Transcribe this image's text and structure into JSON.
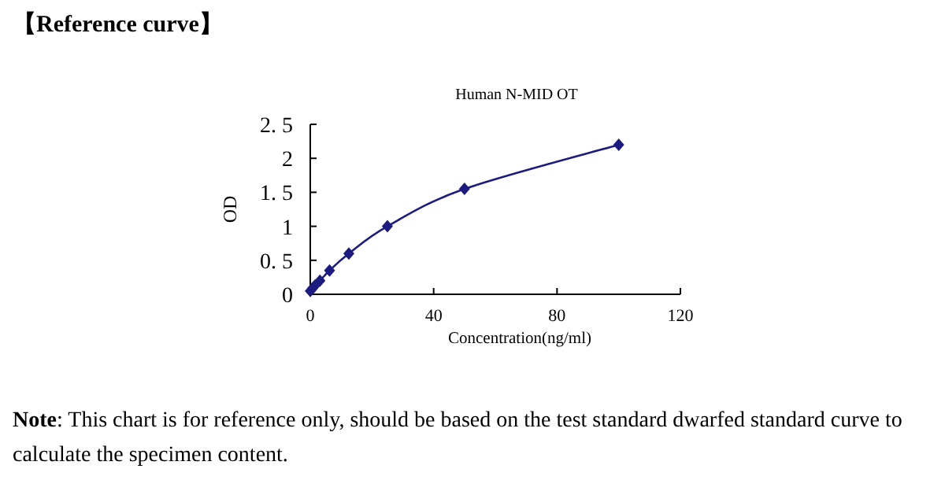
{
  "chart_data": {
    "type": "line",
    "title": "【Reference curve】",
    "subtitle": "Human N-MID OT",
    "xlabel": "Concentration(ng/ml)",
    "ylabel": "OD",
    "annotations": [
      "**Note**: This chart is for reference only, should be based on the test standard dwarfed standard curve to calculate the specimen content."
    ],
    "series": [
      {
        "color": "#1c1c80",
        "x": [
          0,
          0.78,
          1.56,
          3.12,
          6.25,
          12.5,
          25,
          50,
          100
        ],
        "values": [
          0.05,
          0.09,
          0.13,
          0.2,
          0.35,
          0.6,
          1.0,
          1.55,
          2.2
        ]
      }
    ],
    "marker": "diamond",
    "line_style": "solid",
    "grid": false,
    "xlim": [
      0,
      120
    ],
    "xticks": [
      0,
      40,
      80,
      120
    ],
    "ylim": [
      0,
      2.5
    ],
    "yticks": [
      0,
      {
        "value": 0.5,
        "label": "0. 5"
      },
      1,
      {
        "value": 1.5,
        "label": "1. 5"
      },
      2,
      {
        "value": 2.5,
        "label": "2. 5"
      }
    ]
  }
}
